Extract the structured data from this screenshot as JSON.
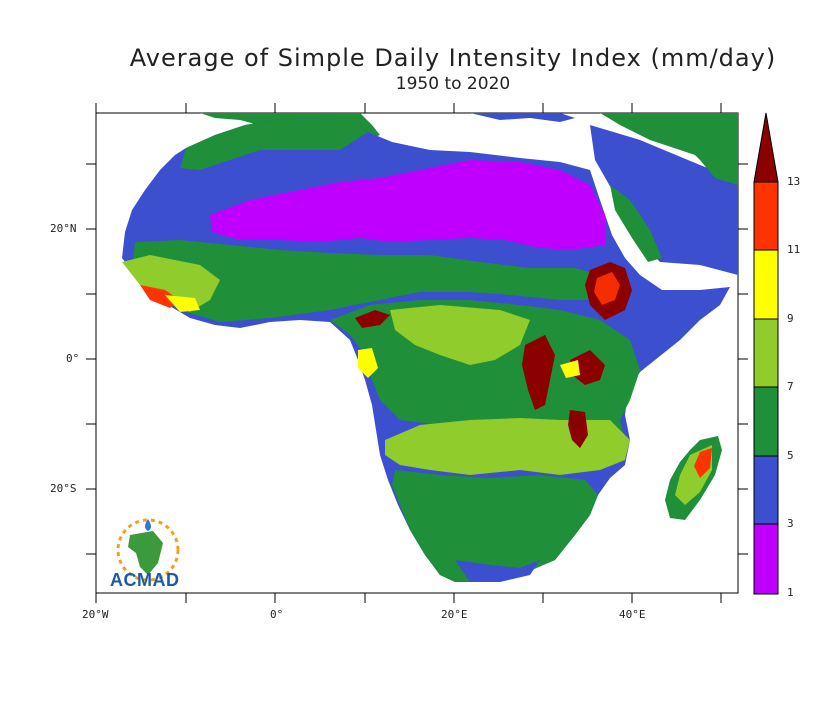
{
  "title": "Average of Simple Daily Intensity Index (mm/day)",
  "subtitle": "1950 to 2020",
  "x_ticks": [
    "20°W",
    "0°",
    "20°E",
    "40°E"
  ],
  "y_ticks": [
    "20°N",
    "0°",
    "20°S"
  ],
  "colorbar": {
    "labels": [
      "1",
      "3",
      "5",
      "7",
      "9",
      "11",
      "13"
    ],
    "colors": [
      "#c000ff",
      "#3b4fcf",
      "#1f8f3a",
      "#8fcc2c",
      "#ffff00",
      "#ff3300",
      "#8b0000"
    ]
  },
  "logo": {
    "text": "ACMAD"
  },
  "map": {
    "lon_range": [
      -20,
      52
    ],
    "lat_range": [
      -36,
      38
    ],
    "land_colors": {
      "sahara_core": "#c000ff",
      "arid": "#3b4fcf",
      "moderate": "#1f8f3a",
      "wet": "#8fcc2c",
      "high": "#ffff00",
      "very_high": "#ff3300",
      "extreme": "#8b0000"
    }
  }
}
